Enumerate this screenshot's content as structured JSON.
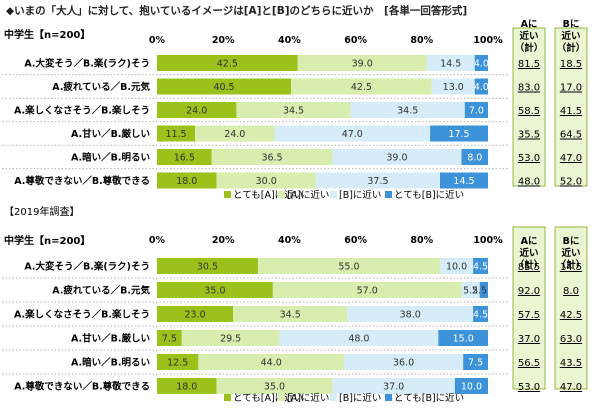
{
  "title": "◆いまの「大人」に対して、抱いているイメージは[A]と[B]のどちらに近いか　[各単一回答形式]",
  "colors": {
    "very_a": "#9BC11A",
    "a": "#D8EDAE",
    "b": "#D6ECF8",
    "very_b": "#3D93D9",
    "panel_bg": "#EAF5D3",
    "panel_border": "#7FA91A"
  },
  "legend": [
    "とても[A]に近い",
    "[A]に近い",
    "[B]に近い",
    "とても[B]に近い"
  ],
  "summary_headers": [
    "Aに近い（計）",
    "Bに近い（計）"
  ],
  "chart_data": [
    {
      "type": "bar",
      "stacked": true,
      "orientation": "horizontal",
      "section_label": "",
      "group_label": "中学生【n=200】",
      "xlim": [
        0,
        100
      ],
      "tick_labels": [
        "0%",
        "20%",
        "40%",
        "60%",
        "80%",
        "100%"
      ],
      "categories": [
        "A.大変そう／B.楽(ラク)そう",
        "A.疲れている／B.元気",
        "A.楽しくなさそう／B.楽しそう",
        "A.甘い／B.厳しい",
        "A.暗い／B.明るい",
        "A.尊敬できない／B.尊敬できる"
      ],
      "series": [
        {
          "name": "とても[A]に近い",
          "values": [
            42.5,
            40.5,
            24.0,
            11.5,
            16.5,
            18.0
          ]
        },
        {
          "name": "[A]に近い",
          "values": [
            39.0,
            42.5,
            34.5,
            24.0,
            36.5,
            30.0
          ]
        },
        {
          "name": "[B]に近い",
          "values": [
            14.5,
            13.0,
            34.5,
            47.0,
            39.0,
            37.5
          ]
        },
        {
          "name": "とても[B]に近い",
          "values": [
            4.0,
            4.0,
            7.0,
            17.5,
            8.0,
            14.5
          ]
        }
      ],
      "a_total": [
        "81.5",
        "83.0",
        "58.5",
        "35.5",
        "53.0",
        "48.0"
      ],
      "b_total": [
        "18.5",
        "17.0",
        "41.5",
        "64.5",
        "47.0",
        "52.0"
      ]
    },
    {
      "type": "bar",
      "stacked": true,
      "orientation": "horizontal",
      "section_label": "【2019年調査】",
      "group_label": "中学生【n=200】",
      "xlim": [
        0,
        100
      ],
      "tick_labels": [
        "0%",
        "20%",
        "40%",
        "60%",
        "80%",
        "100%"
      ],
      "categories": [
        "A.大変そう／B.楽(ラク)そう",
        "A.疲れている／B.元気",
        "A.楽しくなさそう／B.楽しそう",
        "A.甘い／B.厳しい",
        "A.暗い／B.明るい",
        "A.尊敬できない／B.尊敬できる"
      ],
      "series": [
        {
          "name": "とても[A]に近い",
          "values": [
            30.5,
            35.0,
            23.0,
            7.5,
            12.5,
            18.0
          ]
        },
        {
          "name": "[A]に近い",
          "values": [
            55.0,
            57.0,
            34.5,
            29.5,
            44.0,
            35.0
          ]
        },
        {
          "name": "[B]に近い",
          "values": [
            10.0,
            5.5,
            38.0,
            48.0,
            36.0,
            37.0
          ]
        },
        {
          "name": "とても[B]に近い",
          "values": [
            4.5,
            2.5,
            4.5,
            15.0,
            7.5,
            10.0
          ]
        }
      ],
      "a_total": [
        "85.5",
        "92.0",
        "57.5",
        "37.0",
        "56.5",
        "53.0"
      ],
      "b_total": [
        "14.5",
        "8.0",
        "42.5",
        "63.0",
        "43.5",
        "47.0"
      ]
    }
  ]
}
